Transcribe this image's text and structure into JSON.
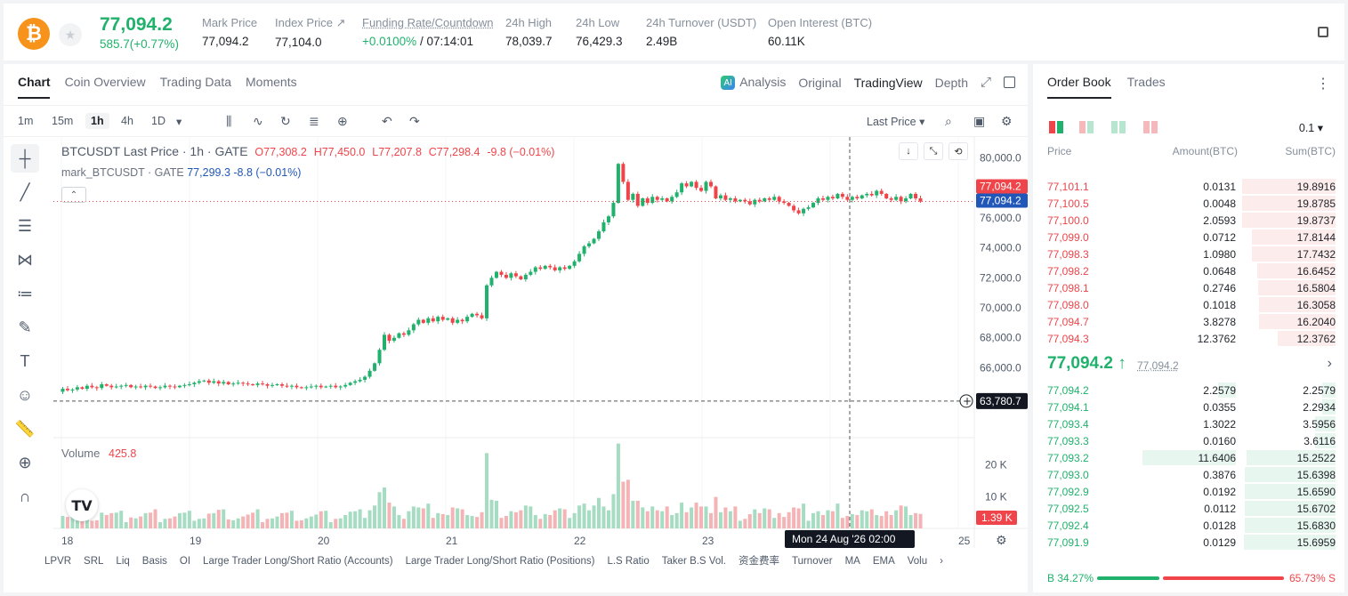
{
  "ticker": {
    "coin_icon": "bitcoin-icon",
    "last_price": "77,094.2",
    "change": "585.7(+0.77%)",
    "stats": [
      {
        "label": "Mark Price",
        "value": "77,094.2"
      },
      {
        "label": "Index Price ↗",
        "value": "77,104.0"
      },
      {
        "label": "Funding Rate/Countdown",
        "value_green": "+0.0100%",
        "value_rest": " / 07:14:01"
      },
      {
        "label": "24h High",
        "value": "78,039.7"
      },
      {
        "label": "24h Low",
        "value": "76,429.3"
      },
      {
        "label": "24h Turnover (USDT)",
        "value": "2.49B"
      },
      {
        "label": "Open Interest (BTC)",
        "value": "60.11K"
      }
    ]
  },
  "chart_tabs": [
    "Chart",
    "Coin Overview",
    "Trading Data",
    "Moments"
  ],
  "view_tabs": [
    "Analysis",
    "Original",
    "TradingView",
    "Depth"
  ],
  "timeframes": [
    "1m",
    "15m",
    "1h",
    "4h",
    "1D"
  ],
  "price_source": "Last Price",
  "legend": {
    "main": "BTCUSDT Last Price · 1h · GATE",
    "o": "O77,308.2",
    "h": "H77,450.0",
    "l": "L77,207.8",
    "c": "C77,298.4",
    "chg": "-9.8 (−0.01%)",
    "mark_label": "mark_BTCUSDT · GATE",
    "mark_value": "77,299.3",
    "mark_chg": "-8.8 (−0.01%)",
    "volume_label": "Volume",
    "volume_value": "425.8"
  },
  "chart_data": {
    "type": "candlestick",
    "price_axis": [
      "80,000.0",
      "78,000.0",
      "76,000.0",
      "74,000.0",
      "72,000.0",
      "70,000.0",
      "68,000.0",
      "66,000.0"
    ],
    "volume_axis": [
      "20 K",
      "10 K"
    ],
    "x_ticks": [
      "18",
      "19",
      "20",
      "21",
      "22",
      "23",
      "24",
      "25"
    ],
    "last_price_tag": "77,094.2",
    "mark_price_tag": "77,094.2",
    "crosshair_price": "63,780.7",
    "crosshair_time": "Mon 24 Aug '26   02:00",
    "volume_tag": "1.39 K",
    "ylim": [
      63000,
      80800
    ],
    "price_path": [
      64400,
      64600,
      64500,
      64550,
      64700,
      64600,
      64800,
      64700,
      64650,
      64900,
      64800,
      64700,
      64750,
      64800,
      64850,
      64700,
      64750,
      64700,
      64800,
      64750,
      64650,
      64700,
      64800,
      64750,
      64700,
      64800,
      64850,
      64900,
      65000,
      65100,
      65150,
      65000,
      65100,
      64950,
      65050,
      64900,
      64950,
      65000,
      64950,
      64900,
      64850,
      64950,
      64900,
      64800,
      64850,
      64900,
      64800,
      64750,
      64800,
      64700,
      64650,
      64700,
      64750,
      64800,
      64700,
      64750,
      64800,
      64700,
      64750,
      64850,
      65000,
      65100,
      65200,
      65400,
      65800,
      66300,
      67200,
      68200,
      67800,
      68000,
      68300,
      68200,
      68500,
      68900,
      69200,
      69000,
      69300,
      69100,
      69400,
      69200,
      69300,
      69000,
      69200,
      69100,
      69400,
      69600,
      69500,
      69300,
      71500,
      72000,
      72400,
      72200,
      72000,
      72300,
      72100,
      71900,
      72200,
      72400,
      72700,
      72600,
      72800,
      72700,
      72500,
      72700,
      72600,
      72800,
      73100,
      73600,
      74100,
      74300,
      74600,
      75100,
      75700,
      76100,
      77000,
      79600,
      78400,
      77200,
      77600,
      76800,
      77300,
      77000,
      77400,
      77200,
      77300,
      77100,
      77400,
      77700,
      78300,
      78100,
      78400,
      78000,
      77800,
      78400,
      78100,
      77300,
      77500,
      77200,
      77300,
      77100,
      77200,
      77100,
      76900,
      77200,
      77100,
      77300,
      77200,
      77400,
      77100,
      77000,
      76800,
      76500,
      76300,
      76600,
      76700,
      77000,
      77300,
      77200,
      77400,
      77300,
      77600,
      77400,
      77200,
      77400,
      77300,
      77500,
      77600,
      77500,
      77800,
      77600,
      77300,
      77200,
      77400,
      77100,
      77300,
      77600,
      77300,
      77094
    ]
  },
  "indicators": [
    "LPVR",
    "SRL",
    "Liq",
    "Basis",
    "OI",
    "Large Trader Long/Short Ratio (Accounts)",
    "Large Trader Long/Short Ratio (Positions)",
    "L.S Ratio",
    "Taker B.S Vol.",
    "资金费率",
    "Turnover",
    "MA",
    "EMA",
    "Volu"
  ],
  "order_book": {
    "tabs": [
      "Order Book",
      "Trades"
    ],
    "precision": "0.1 ▾",
    "headers": [
      "Price",
      "Amount(BTC)",
      "Sum(BTC)"
    ],
    "asks": [
      {
        "price": "77,101.1",
        "amount": "0.0131",
        "sum": "19.8916",
        "depth": 1.0
      },
      {
        "price": "77,100.5",
        "amount": "0.0048",
        "sum": "19.8785",
        "depth": 1.0
      },
      {
        "price": "77,100.0",
        "amount": "2.0593",
        "sum": "19.8737",
        "depth": 1.0
      },
      {
        "price": "77,099.0",
        "amount": "0.0712",
        "sum": "17.8144",
        "depth": 0.9
      },
      {
        "price": "77,098.3",
        "amount": "1.0980",
        "sum": "17.7432",
        "depth": 0.9
      },
      {
        "price": "77,098.2",
        "amount": "0.0648",
        "sum": "16.6452",
        "depth": 0.84
      },
      {
        "price": "77,098.1",
        "amount": "0.2746",
        "sum": "16.5804",
        "depth": 0.83
      },
      {
        "price": "77,098.0",
        "amount": "0.1018",
        "sum": "16.3058",
        "depth": 0.82
      },
      {
        "price": "77,094.7",
        "amount": "3.8278",
        "sum": "16.2040",
        "depth": 0.82
      },
      {
        "price": "77,094.3",
        "amount": "12.3762",
        "sum": "12.3762",
        "depth": 0.62
      }
    ],
    "mid_price": "77,094.2 ↑",
    "mid_mark": "77,094.2",
    "bids": [
      {
        "price": "77,094.2",
        "amount": "2.2579",
        "sum": "2.2579",
        "depth": 0.14
      },
      {
        "price": "77,094.1",
        "amount": "0.0355",
        "sum": "2.2934",
        "depth": 0.14
      },
      {
        "price": "77,093.4",
        "amount": "1.3022",
        "sum": "3.5956",
        "depth": 0.22
      },
      {
        "price": "77,093.3",
        "amount": "0.0160",
        "sum": "3.6116",
        "depth": 0.22
      },
      {
        "price": "77,093.2",
        "amount": "11.6406",
        "sum": "15.2522",
        "depth": 0.95
      },
      {
        "price": "77,093.0",
        "amount": "0.3876",
        "sum": "15.6398",
        "depth": 0.97
      },
      {
        "price": "77,092.9",
        "amount": "0.0192",
        "sum": "15.6590",
        "depth": 0.97
      },
      {
        "price": "77,092.5",
        "amount": "0.0112",
        "sum": "15.6702",
        "depth": 0.97
      },
      {
        "price": "77,092.4",
        "amount": "0.0128",
        "sum": "15.6830",
        "depth": 0.97
      },
      {
        "price": "77,091.9",
        "amount": "0.0129",
        "sum": "15.6959",
        "depth": 0.98
      }
    ],
    "buy_ratio": "B 34.27%",
    "sell_ratio": "65.73% S"
  },
  "colors": {
    "up": "#20b26c",
    "down": "#ef454a",
    "mark": "#2157b8"
  }
}
